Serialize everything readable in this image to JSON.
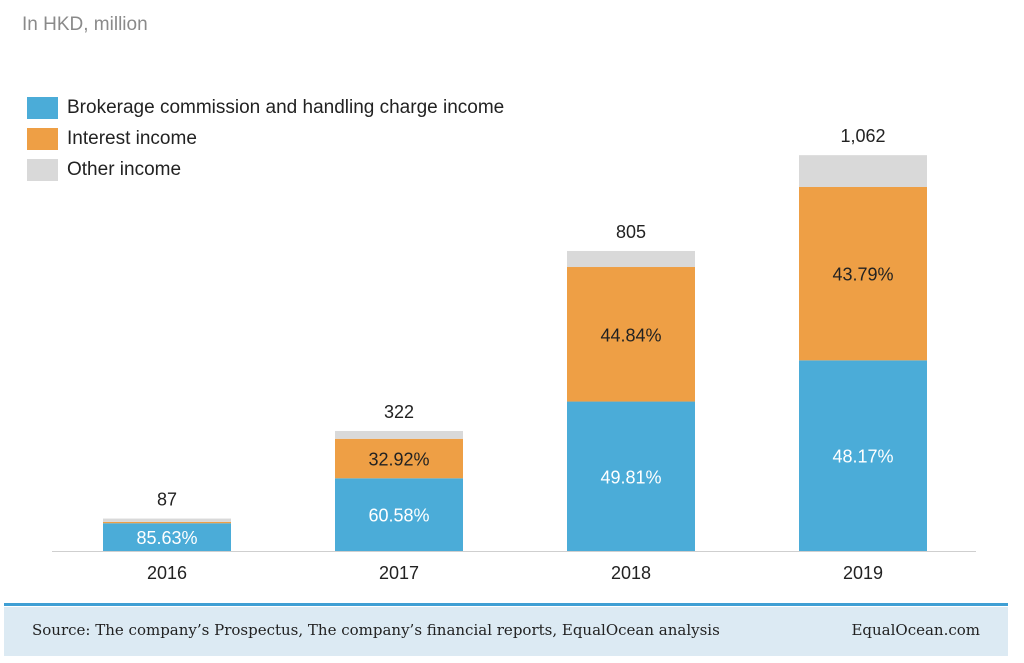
{
  "unit_label": "In HKD, million",
  "colors": {
    "brokerage": "#4bacd8",
    "interest": "#ee9f45",
    "other": "#d9d9d9",
    "axis": "#cfcfcf"
  },
  "legend": [
    {
      "key": "brokerage",
      "label": "Brokerage commission and handling charge income"
    },
    {
      "key": "interest",
      "label": "Interest income"
    },
    {
      "key": "other",
      "label": "Other income"
    }
  ],
  "chart_data": {
    "type": "bar",
    "stacked": true,
    "categories": [
      "2016",
      "2017",
      "2018",
      "2019"
    ],
    "totals": [
      87,
      322,
      805,
      1062
    ],
    "total_labels": [
      "87",
      "322",
      "805",
      "1,062"
    ],
    "ylim": [
      0,
      1100
    ],
    "grid": false,
    "legend_position": "top-left",
    "series": [
      {
        "name": "Brokerage commission and handling charge income",
        "key": "brokerage",
        "share": [
          85.63,
          60.58,
          49.81,
          48.17
        ],
        "labels": [
          "85.63%",
          "60.58%",
          "49.81%",
          "48.17%"
        ],
        "label_color": "#ffffff"
      },
      {
        "name": "Interest income",
        "key": "interest",
        "share": [
          4.0,
          32.92,
          44.84,
          43.79
        ],
        "labels": [
          "",
          "32.92%",
          "44.84%",
          "43.79%"
        ],
        "label_color": "#222222"
      },
      {
        "name": "Other income",
        "key": "other",
        "share": [
          10.37,
          6.5,
          5.35,
          8.04
        ],
        "labels": [
          "",
          "",
          "",
          ""
        ],
        "label_color": "#222222"
      }
    ]
  },
  "footer": {
    "source": "Source: The company’s Prospectus, The company’s  financial reports, EqualOcean analysis",
    "brand": "EqualOcean.com"
  }
}
